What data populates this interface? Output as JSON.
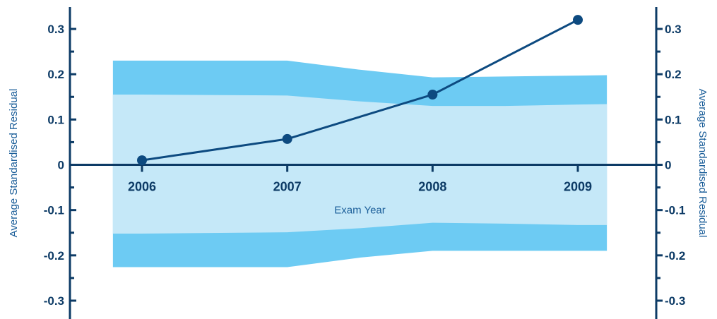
{
  "chart_data": {
    "type": "line",
    "title": "",
    "xlabel": "Exam Year",
    "ylabel_left": "Average Standardised Residual",
    "ylabel_right": "Average Standardised Residual",
    "x": [
      "2006",
      "2007",
      "2008",
      "2009"
    ],
    "x_numeric": [
      2006,
      2007,
      2008,
      2009
    ],
    "xlim": [
      2005.8,
      2009.2
    ],
    "ylim": [
      -0.3,
      0.3
    ],
    "y_ticks": [
      {
        "value": 0.3,
        "label": "0.3"
      },
      {
        "value": 0.2,
        "label": "0.2"
      },
      {
        "value": 0.1,
        "label": "0.1"
      },
      {
        "value": 0,
        "label": "0"
      },
      {
        "value": -0.1,
        "label": "-0.1"
      },
      {
        "value": -0.2,
        "label": "-0.2"
      },
      {
        "value": -0.3,
        "label": "-0.3"
      }
    ],
    "series": [
      {
        "values": [
          0.01,
          0.057,
          0.155,
          0.32
        ],
        "color": "#0d4a80"
      }
    ],
    "bands": [
      {
        "role": "outer",
        "color": "#6dcbf3",
        "x": [
          2005.8,
          2006,
          2007,
          2007.5,
          2008,
          2008.5,
          2009,
          2009.2
        ],
        "upper": [
          0.23,
          0.23,
          0.23,
          0.21,
          0.193,
          0.195,
          0.197,
          0.198
        ],
        "lower": [
          -0.226,
          -0.226,
          -0.226,
          -0.205,
          -0.19,
          -0.19,
          -0.19,
          -0.19
        ]
      },
      {
        "role": "inner",
        "color": "#c5e8f8",
        "x": [
          2005.8,
          2006,
          2007,
          2007.5,
          2008,
          2008.5,
          2009,
          2009.2
        ],
        "upper": [
          0.155,
          0.155,
          0.153,
          0.14,
          0.13,
          0.13,
          0.133,
          0.134
        ],
        "lower": [
          -0.152,
          -0.152,
          -0.149,
          -0.14,
          -0.128,
          -0.13,
          -0.133,
          -0.133
        ]
      }
    ],
    "colors": {
      "axis": "#0d3b66",
      "text": "#0d3b66",
      "title_text": "#1b5e99"
    },
    "grid": false,
    "legend": "none"
  }
}
